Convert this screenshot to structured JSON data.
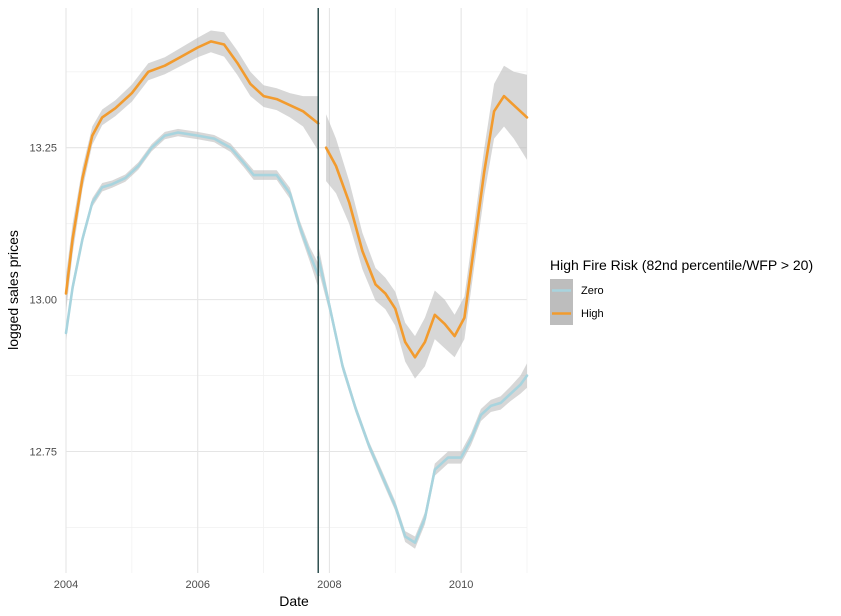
{
  "chart_data": {
    "type": "line",
    "title": "",
    "xlabel": "Date",
    "ylabel": "logged sales prices",
    "xlim": [
      2004,
      2011
    ],
    "ylim": [
      12.55,
      13.48
    ],
    "x_ticks": [
      "2004",
      "2006",
      "2008",
      "2010"
    ],
    "y_ticks": [
      "12.75",
      "13.00",
      "13.25"
    ],
    "grid": true,
    "vline_x": 2007.83,
    "legend": {
      "title": "High Fire Risk (82nd percentile/WFP > 20)",
      "position": "right"
    },
    "colors": {
      "Zero": "#a8d4de",
      "High": "#f29b2e",
      "band": "#bdbdbd",
      "vline": "#2f4f4f"
    },
    "series": [
      {
        "name": "Zero",
        "segments": [
          {
            "x": [
              2004.0,
              2004.1,
              2004.25,
              2004.4,
              2004.55,
              2004.7,
              2004.9,
              2005.1,
              2005.3,
              2005.5,
              2005.7,
              2006.0,
              2006.25,
              2006.5,
              2006.7,
              2006.85,
              2007.0,
              2007.2,
              2007.4,
              2007.55,
              2007.7,
              2007.83
            ],
            "y": [
              12.945,
              13.02,
              13.1,
              13.16,
              13.185,
              13.19,
              13.2,
              13.22,
              13.25,
              13.27,
              13.275,
              13.27,
              13.265,
              13.25,
              13.225,
              13.205,
              13.205,
              13.205,
              13.175,
              13.12,
              13.075,
              13.04
            ],
            "band": [
              0.012,
              0.01,
              0.008,
              0.007,
              0.007,
              0.006,
              0.006,
              0.006,
              0.006,
              0.006,
              0.006,
              0.006,
              0.006,
              0.007,
              0.007,
              0.008,
              0.008,
              0.008,
              0.009,
              0.01,
              0.012,
              0.02
            ]
          },
          {
            "x": [
              2007.83,
              2008.0,
              2008.2,
              2008.4,
              2008.6,
              2008.8,
              2009.0,
              2009.15,
              2009.3,
              2009.45,
              2009.6,
              2009.8,
              2010.0,
              2010.15,
              2010.3,
              2010.45,
              2010.6,
              2010.75,
              2010.9,
              2011.0
            ],
            "y": [
              13.07,
              12.99,
              12.89,
              12.82,
              12.76,
              12.71,
              12.66,
              12.61,
              12.6,
              12.64,
              12.72,
              12.74,
              12.74,
              12.77,
              12.81,
              12.825,
              12.83,
              12.845,
              12.86,
              12.875
            ],
            "band": [
              0.02,
              0.01,
              0.008,
              0.007,
              0.007,
              0.008,
              0.008,
              0.009,
              0.01,
              0.01,
              0.01,
              0.01,
              0.01,
              0.01,
              0.01,
              0.01,
              0.011,
              0.012,
              0.015,
              0.02
            ]
          }
        ]
      },
      {
        "name": "High",
        "segments": [
          {
            "x": [
              2004.0,
              2004.1,
              2004.25,
              2004.4,
              2004.55,
              2004.75,
              2005.0,
              2005.25,
              2005.5,
              2005.75,
              2006.0,
              2006.2,
              2006.4,
              2006.6,
              2006.8,
              2007.0,
              2007.2,
              2007.4,
              2007.6,
              2007.83
            ],
            "y": [
              13.01,
              13.1,
              13.2,
              13.27,
              13.3,
              13.315,
              13.34,
              13.375,
              13.385,
              13.4,
              13.415,
              13.425,
              13.42,
              13.39,
              13.355,
              13.335,
              13.33,
              13.32,
              13.31,
              13.29
            ],
            "band": [
              0.03,
              0.025,
              0.018,
              0.015,
              0.013,
              0.013,
              0.014,
              0.014,
              0.014,
              0.015,
              0.016,
              0.018,
              0.02,
              0.02,
              0.02,
              0.018,
              0.018,
              0.02,
              0.025,
              0.045
            ]
          },
          {
            "x": [
              2007.95,
              2008.1,
              2008.3,
              2008.5,
              2008.7,
              2008.85,
              2009.0,
              2009.15,
              2009.3,
              2009.45,
              2009.6,
              2009.75,
              2009.9,
              2010.05,
              2010.2,
              2010.35,
              2010.5,
              2010.65,
              2010.8,
              2011.0
            ],
            "y": [
              13.25,
              13.22,
              13.16,
              13.08,
              13.025,
              13.01,
              12.985,
              12.93,
              12.905,
              12.93,
              12.975,
              12.96,
              12.94,
              12.97,
              13.09,
              13.21,
              13.31,
              13.335,
              13.32,
              13.3
            ],
            "band": [
              0.055,
              0.045,
              0.035,
              0.03,
              0.027,
              0.026,
              0.028,
              0.032,
              0.035,
              0.04,
              0.04,
              0.04,
              0.035,
              0.035,
              0.035,
              0.038,
              0.045,
              0.05,
              0.055,
              0.07
            ]
          }
        ]
      }
    ]
  }
}
